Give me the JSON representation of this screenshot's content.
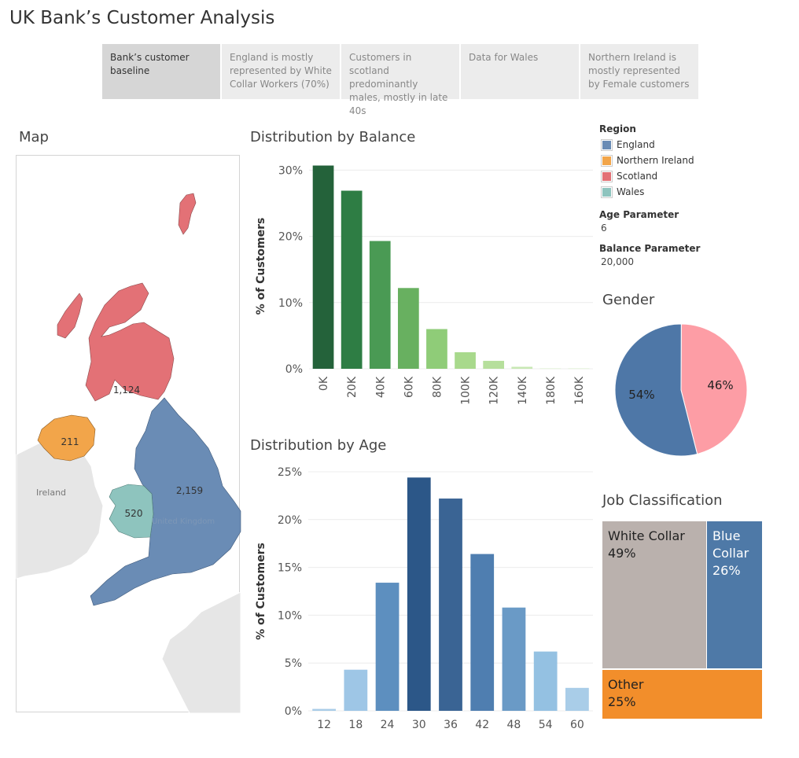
{
  "dashboard": {
    "title": "UK Bank’s Customer Analysis"
  },
  "story_points": [
    "Bank’s customer baseline",
    "England is mostly represented by White Collar Workers (70%)",
    "Customers in scotland predominantly males, mostly in late 40s",
    "Data for Wales",
    "Northern Ireland is mostly represented by Female customers"
  ],
  "sections": {
    "map": "Map",
    "balance": "Distribution by Balance",
    "age": "Distribution by Age",
    "gender": "Gender",
    "job": "Job Classification"
  },
  "legend": {
    "title": "Region",
    "items": [
      {
        "label": "England",
        "color": "#6a8cb5"
      },
      {
        "label": "Northern Ireland",
        "color": "#f2a54a"
      },
      {
        "label": "Scotland",
        "color": "#e37176"
      },
      {
        "label": "Wales",
        "color": "#8ec4be"
      }
    ]
  },
  "parameters": {
    "age": {
      "label": "Age Parameter",
      "value": "6"
    },
    "balance": {
      "label": "Balance Parameter",
      "value": "20,000"
    }
  },
  "map": {
    "labels": {
      "ireland": "Ireland",
      "uk": "United Kingdom"
    },
    "regions": [
      {
        "name": "England",
        "value": "2,159",
        "color": "#6a8cb5"
      },
      {
        "name": "Northern Ireland",
        "value": "211",
        "color": "#f2a54a"
      },
      {
        "name": "Scotland",
        "value": "1,124",
        "color": "#e37176"
      },
      {
        "name": "Wales",
        "value": "520",
        "color": "#8ec4be"
      }
    ]
  },
  "chart_data": [
    {
      "type": "bar",
      "title": "Distribution by Balance",
      "ylabel": "% of Customers",
      "categories": [
        "0K",
        "20K",
        "40K",
        "60K",
        "80K",
        "100K",
        "120K",
        "140K",
        "180K",
        "160K"
      ],
      "values": [
        30.7,
        26.9,
        19.3,
        12.2,
        6.0,
        2.5,
        1.2,
        0.3,
        0.05,
        0.05
      ],
      "ylim": [
        0,
        31
      ],
      "yticks": [
        0,
        10,
        20,
        30
      ],
      "colors": [
        "#24623a",
        "#2e7d44",
        "#4a9a54",
        "#68b060",
        "#8fcc78",
        "#a8d98c",
        "#b6df9c",
        "#c8e8b4",
        "#d4edc4",
        "#d4edc4"
      ],
      "grid": true
    },
    {
      "type": "bar",
      "title": "Distribution by Age",
      "ylabel": "% of Customers",
      "categories": [
        "12",
        "18",
        "24",
        "30",
        "36",
        "42",
        "48",
        "54",
        "60"
      ],
      "values": [
        0.2,
        4.3,
        13.4,
        24.4,
        22.2,
        16.4,
        10.8,
        6.2,
        2.4
      ],
      "ylim": [
        0,
        25
      ],
      "yticks": [
        0,
        5,
        10,
        15,
        20,
        25
      ],
      "colors": [
        "#a9cde8",
        "#9ec6e6",
        "#5d8fbf",
        "#2c5788",
        "#3a6494",
        "#4f7eb0",
        "#6a9ac6",
        "#94c1e2",
        "#a9cde8"
      ],
      "grid": true
    },
    {
      "type": "pie",
      "title": "Gender",
      "slices": [
        {
          "label": "54%",
          "value": 54,
          "color": "#4e77a7"
        },
        {
          "label": "46%",
          "value": 46,
          "color": "#fd9da5"
        }
      ]
    },
    {
      "type": "treemap",
      "title": "Job Classification",
      "items": [
        {
          "name": "White Collar",
          "value": 49,
          "label": "49%",
          "color": "#bab1ad"
        },
        {
          "name": "Blue Collar",
          "value": 26,
          "label": "26%",
          "color": "#4e79a7"
        },
        {
          "name": "Other",
          "value": 25,
          "label": "25%",
          "color": "#f28e2b"
        }
      ]
    }
  ]
}
